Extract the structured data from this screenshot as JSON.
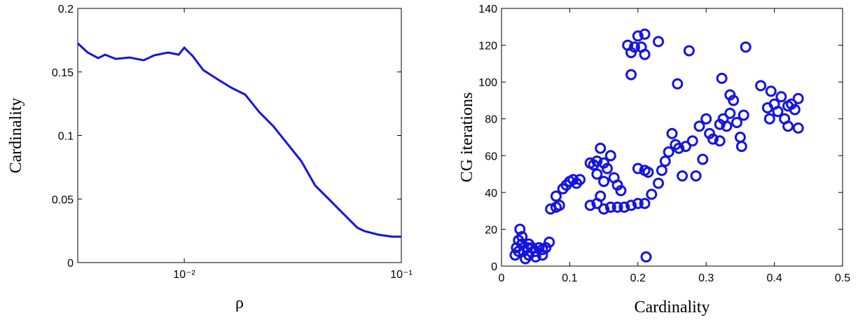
{
  "chart_data": [
    {
      "type": "line",
      "xlabel": "ρ",
      "ylabel": "Cardinality",
      "xscale": "log",
      "xlim": [
        0.00323,
        0.1
      ],
      "xticks": [
        {
          "value": 0.01,
          "label": "10⁻²"
        },
        {
          "value": 0.1,
          "label": "10⁻¹"
        }
      ],
      "ylim": [
        0,
        0.2
      ],
      "yticks": [
        0,
        0.05,
        0.1,
        0.15,
        0.2
      ],
      "color": "#1414e0",
      "x": [
        0.00323,
        0.00359,
        0.00401,
        0.00432,
        0.00483,
        0.0056,
        0.0065,
        0.00727,
        0.00843,
        0.00942,
        0.01,
        0.01094,
        0.01222,
        0.01418,
        0.01644,
        0.01909,
        0.02213,
        0.0257,
        0.02979,
        0.03459,
        0.04009,
        0.04656,
        0.05395,
        0.06266,
        0.06745,
        0.07834,
        0.09078,
        0.1
      ],
      "values": [
        0.1725,
        0.1653,
        0.1609,
        0.1636,
        0.1603,
        0.1614,
        0.1592,
        0.1631,
        0.1653,
        0.1636,
        0.1691,
        0.1625,
        0.1515,
        0.1444,
        0.1377,
        0.1322,
        0.1185,
        0.1074,
        0.0937,
        0.0799,
        0.0606,
        0.0496,
        0.0386,
        0.0275,
        0.0248,
        0.022,
        0.0204,
        0.0204
      ]
    },
    {
      "type": "scatter",
      "xlabel": "Cardinality",
      "ylabel": "CG iterations",
      "xlim": [
        0,
        0.5
      ],
      "xticks": [
        0,
        0.1,
        0.2,
        0.3,
        0.4,
        0.5
      ],
      "ylim": [
        0,
        140
      ],
      "yticks": [
        0,
        20,
        40,
        60,
        80,
        100,
        120,
        140
      ],
      "color": "#1414e0",
      "x": [
        0.02,
        0.022,
        0.025,
        0.027,
        0.03,
        0.032,
        0.035,
        0.038,
        0.04,
        0.045,
        0.05,
        0.055,
        0.06,
        0.065,
        0.07,
        0.03,
        0.025,
        0.04,
        0.05,
        0.06,
        0.072,
        0.08,
        0.085,
        0.08,
        0.09,
        0.095,
        0.1,
        0.105,
        0.11,
        0.115,
        0.13,
        0.135,
        0.14,
        0.145,
        0.15,
        0.155,
        0.16,
        0.165,
        0.17,
        0.175,
        0.14,
        0.15,
        0.13,
        0.14,
        0.15,
        0.16,
        0.17,
        0.18,
        0.19,
        0.2,
        0.21,
        0.145,
        0.2,
        0.21,
        0.215,
        0.212,
        0.22,
        0.185,
        0.19,
        0.195,
        0.2,
        0.205,
        0.21,
        0.21,
        0.19,
        0.23,
        0.275,
        0.258,
        0.358,
        0.323,
        0.23,
        0.235,
        0.24,
        0.245,
        0.25,
        0.255,
        0.26,
        0.265,
        0.27,
        0.28,
        0.285,
        0.29,
        0.295,
        0.3,
        0.305,
        0.31,
        0.32,
        0.325,
        0.33,
        0.335,
        0.335,
        0.34,
        0.345,
        0.35,
        0.352,
        0.355,
        0.32,
        0.38,
        0.39,
        0.393,
        0.395,
        0.4,
        0.405,
        0.41,
        0.415,
        0.42,
        0.425,
        0.43,
        0.435,
        0.435,
        0.42
      ],
      "values": [
        6,
        10,
        14,
        20,
        12,
        8,
        4,
        10,
        6,
        10,
        8,
        10,
        9,
        10,
        13,
        16,
        8,
        12,
        5,
        6,
        31,
        32,
        33,
        38,
        42,
        44,
        46,
        47,
        45,
        47,
        56,
        55,
        57,
        64,
        56,
        53,
        60,
        48,
        44,
        41,
        50,
        46,
        33,
        34,
        31,
        32,
        32,
        32,
        33,
        34,
        34,
        38,
        53,
        52,
        51,
        5,
        39,
        120,
        116,
        119,
        125,
        119,
        126,
        115,
        104,
        122,
        117,
        99,
        119,
        102,
        45,
        52,
        57,
        62,
        72,
        66,
        64,
        49,
        65,
        68,
        49,
        76,
        58,
        80,
        72,
        69,
        77,
        80,
        76,
        83,
        93,
        90,
        78,
        70,
        65,
        82,
        68,
        98,
        86,
        80,
        95,
        88,
        84,
        92,
        80,
        76,
        88,
        85,
        75,
        91,
        87
      ]
    }
  ]
}
